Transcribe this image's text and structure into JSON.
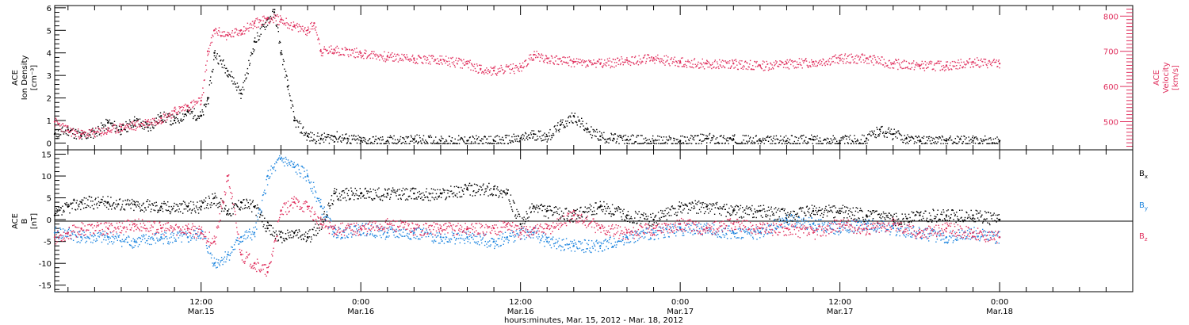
{
  "colors": {
    "black": "#000000",
    "red": "#e0305e",
    "blue": "#1f86df"
  },
  "top_panel": {
    "ylabel_left": [
      "ACE",
      "Ion Density",
      "[cm⁻³]"
    ],
    "ylabel_right": [
      "ACE",
      "Velocity",
      "[km/s]"
    ]
  },
  "bottom_panel": {
    "ylabel": [
      "ACE",
      "B",
      "[nT]"
    ],
    "legend": [
      {
        "text": "B",
        "sub": "x",
        "color": "#000000"
      },
      {
        "text": "B",
        "sub": "y",
        "color": "#1f86df"
      },
      {
        "text": "B",
        "sub": "z",
        "color": "#e0305e"
      }
    ]
  },
  "x_axis": {
    "label": "hours:minutes, Mar. 15, 2012 - Mar. 18, 2012",
    "ticks": [
      {
        "hour": 12,
        "top": "12:00",
        "bottom": "Mar.15"
      },
      {
        "hour": 24,
        "top": "0:00",
        "bottom": "Mar.16"
      },
      {
        "hour": 36,
        "top": "12:00",
        "bottom": "Mar.16"
      },
      {
        "hour": 48,
        "top": "0:00",
        "bottom": "Mar.17"
      },
      {
        "hour": 60,
        "top": "12:00",
        "bottom": "Mar.17"
      },
      {
        "hour": 72,
        "top": "0:00",
        "bottom": "Mar.18"
      }
    ]
  },
  "chart_data": [
    {
      "type": "scatter",
      "xlim_hours": [
        1,
        82
      ],
      "yaxes": {
        "left": {
          "name": "Ion Density",
          "units": "cm^-3",
          "ylim": [
            -0.3,
            6.1
          ],
          "ticks": [
            0,
            1,
            2,
            3,
            4,
            5,
            6
          ]
        },
        "right": {
          "name": "Velocity",
          "units": "km/s",
          "ylim": [
            420,
            830
          ],
          "ticks": [
            500,
            600,
            700,
            800
          ]
        }
      },
      "series": [
        {
          "key": "density",
          "axis": "left",
          "color": "#000000",
          "points": [
            [
              1,
              0.4
            ],
            [
              2,
              0.6
            ],
            [
              3,
              0.3
            ],
            [
              4,
              0.5
            ],
            [
              5,
              0.9
            ],
            [
              6,
              0.6
            ],
            [
              7,
              1.0
            ],
            [
              8,
              0.7
            ],
            [
              9,
              1.2
            ],
            [
              10,
              1.0
            ],
            [
              11,
              1.4
            ],
            [
              12,
              1.2
            ],
            [
              12.5,
              2.0
            ],
            [
              13,
              4.0
            ],
            [
              14,
              3.2
            ],
            [
              15,
              2.2
            ],
            [
              16,
              4.5
            ],
            [
              17,
              5.5
            ],
            [
              17.5,
              5.8
            ],
            [
              18,
              4.0
            ],
            [
              18.5,
              2.5
            ],
            [
              19,
              1.0
            ],
            [
              20,
              0.3
            ],
            [
              21,
              0.2
            ],
            [
              22,
              0.3
            ],
            [
              23,
              0.2
            ],
            [
              24,
              0.1
            ],
            [
              26,
              0.1
            ],
            [
              28,
              0.15
            ],
            [
              30,
              0.1
            ],
            [
              32,
              0.1
            ],
            [
              34,
              0.1
            ],
            [
              36,
              0.2
            ],
            [
              37,
              0.4
            ],
            [
              38,
              0.3
            ],
            [
              39,
              0.8
            ],
            [
              40,
              1.2
            ],
            [
              41,
              0.6
            ],
            [
              42,
              0.3
            ],
            [
              43,
              0.2
            ],
            [
              44,
              0.15
            ],
            [
              46,
              0.1
            ],
            [
              48,
              0.1
            ],
            [
              50,
              0.2
            ],
            [
              52,
              0.15
            ],
            [
              54,
              0.1
            ],
            [
              56,
              0.1
            ],
            [
              58,
              0.15
            ],
            [
              60,
              0.1
            ],
            [
              62,
              0.2
            ],
            [
              63,
              0.6
            ],
            [
              64,
              0.4
            ],
            [
              65,
              0.2
            ],
            [
              66,
              0.1
            ],
            [
              68,
              0.1
            ],
            [
              70,
              0.1
            ],
            [
              72,
              0.1
            ]
          ]
        },
        {
          "key": "velocity",
          "axis": "right",
          "color": "#e0305e",
          "points": [
            [
              1,
              500
            ],
            [
              2,
              475
            ],
            [
              3,
              465
            ],
            [
              4,
              470
            ],
            [
              5,
              475
            ],
            [
              6,
              485
            ],
            [
              7,
              490
            ],
            [
              8,
              500
            ],
            [
              9,
              510
            ],
            [
              10,
              530
            ],
            [
              11,
              545
            ],
            [
              12,
              560
            ],
            [
              12.5,
              700
            ],
            [
              13,
              760
            ],
            [
              14,
              745
            ],
            [
              15,
              760
            ],
            [
              16,
              780
            ],
            [
              17,
              795
            ],
            [
              18,
              790
            ],
            [
              19,
              770
            ],
            [
              20,
              760
            ],
            [
              20.5,
              780
            ],
            [
              21,
              700
            ],
            [
              22,
              705
            ],
            [
              24,
              695
            ],
            [
              26,
              685
            ],
            [
              28,
              680
            ],
            [
              30,
              675
            ],
            [
              32,
              665
            ],
            [
              33,
              650
            ],
            [
              34,
              645
            ],
            [
              36,
              655
            ],
            [
              37,
              690
            ],
            [
              38,
              680
            ],
            [
              40,
              670
            ],
            [
              42,
              665
            ],
            [
              44,
              675
            ],
            [
              46,
              680
            ],
            [
              48,
              670
            ],
            [
              50,
              665
            ],
            [
              52,
              665
            ],
            [
              54,
              660
            ],
            [
              56,
              665
            ],
            [
              58,
              670
            ],
            [
              60,
              680
            ],
            [
              62,
              680
            ],
            [
              64,
              665
            ],
            [
              66,
              660
            ],
            [
              68,
              660
            ],
            [
              70,
              670
            ],
            [
              72,
              665
            ]
          ]
        }
      ]
    },
    {
      "type": "scatter",
      "xlim_hours": [
        1,
        82
      ],
      "ylim": [
        -16.5,
        16
      ],
      "yticks": [
        -15,
        -10,
        -5,
        0,
        5,
        10,
        15
      ],
      "reference_line": 0,
      "series": [
        {
          "key": "Bx",
          "name": "Bx",
          "color": "#000000",
          "points": [
            [
              1,
              1
            ],
            [
              2,
              3
            ],
            [
              3,
              4
            ],
            [
              5,
              4
            ],
            [
              7,
              3.5
            ],
            [
              9,
              3
            ],
            [
              11,
              3
            ],
            [
              12,
              3
            ],
            [
              13,
              5
            ],
            [
              14,
              2
            ],
            [
              15,
              4
            ],
            [
              16,
              3
            ],
            [
              17,
              -2
            ],
            [
              18,
              -4
            ],
            [
              19,
              -3
            ],
            [
              20,
              -4
            ],
            [
              21,
              -1
            ],
            [
              22,
              6
            ],
            [
              24,
              6
            ],
            [
              26,
              6
            ],
            [
              28,
              6
            ],
            [
              30,
              6
            ],
            [
              32,
              7
            ],
            [
              34,
              7
            ],
            [
              35,
              6
            ],
            [
              36,
              -1
            ],
            [
              37,
              3
            ],
            [
              38,
              2
            ],
            [
              40,
              1
            ],
            [
              42,
              3
            ],
            [
              44,
              1
            ],
            [
              46,
              0
            ],
            [
              48,
              3
            ],
            [
              50,
              3
            ],
            [
              52,
              2
            ],
            [
              54,
              2
            ],
            [
              56,
              1
            ],
            [
              58,
              2
            ],
            [
              60,
              2
            ],
            [
              62,
              1
            ],
            [
              64,
              0
            ],
            [
              66,
              1
            ],
            [
              68,
              1
            ],
            [
              70,
              1
            ],
            [
              72,
              0
            ]
          ]
        },
        {
          "key": "By",
          "name": "By",
          "color": "#1f86df",
          "points": [
            [
              1,
              -3
            ],
            [
              2,
              -3
            ],
            [
              3,
              -4
            ],
            [
              5,
              -4
            ],
            [
              7,
              -5
            ],
            [
              9,
              -4
            ],
            [
              11,
              -4
            ],
            [
              12,
              -3
            ],
            [
              13,
              -10
            ],
            [
              14,
              -8
            ],
            [
              15,
              -4
            ],
            [
              16,
              -3
            ],
            [
              17,
              10
            ],
            [
              18,
              14
            ],
            [
              19,
              12
            ],
            [
              20,
              10
            ],
            [
              21,
              3
            ],
            [
              22,
              -3
            ],
            [
              24,
              -2
            ],
            [
              26,
              -3
            ],
            [
              28,
              -3
            ],
            [
              30,
              -4
            ],
            [
              32,
              -4
            ],
            [
              34,
              -5
            ],
            [
              35,
              -4
            ],
            [
              36,
              -3
            ],
            [
              37,
              -3
            ],
            [
              38,
              -5
            ],
            [
              40,
              -6
            ],
            [
              42,
              -6
            ],
            [
              44,
              -4
            ],
            [
              46,
              -3
            ],
            [
              48,
              -2
            ],
            [
              50,
              -2
            ],
            [
              52,
              -3
            ],
            [
              54,
              -3
            ],
            [
              56,
              0
            ],
            [
              58,
              -1
            ],
            [
              60,
              -2
            ],
            [
              62,
              -1
            ],
            [
              64,
              -2
            ],
            [
              66,
              -3
            ],
            [
              68,
              -4
            ],
            [
              70,
              -3
            ],
            [
              72,
              -4
            ]
          ]
        },
        {
          "key": "Bz",
          "name": "Bz",
          "color": "#e0305e",
          "points": [
            [
              1,
              -4
            ],
            [
              2,
              -3
            ],
            [
              3,
              -2
            ],
            [
              5,
              -2
            ],
            [
              7,
              -1
            ],
            [
              9,
              -2
            ],
            [
              11,
              -2
            ],
            [
              12,
              -3
            ],
            [
              13,
              -5
            ],
            [
              14,
              10
            ],
            [
              15,
              -8
            ],
            [
              16,
              -10
            ],
            [
              17,
              -12
            ],
            [
              18,
              2
            ],
            [
              19,
              4
            ],
            [
              20,
              3
            ],
            [
              21,
              -1
            ],
            [
              22,
              -2
            ],
            [
              24,
              -2
            ],
            [
              26,
              -1
            ],
            [
              28,
              -2
            ],
            [
              30,
              -2
            ],
            [
              32,
              -2
            ],
            [
              34,
              -2
            ],
            [
              35,
              -1
            ],
            [
              36,
              -3
            ],
            [
              37,
              -2
            ],
            [
              38,
              -2
            ],
            [
              40,
              1
            ],
            [
              42,
              -2
            ],
            [
              44,
              -3
            ],
            [
              46,
              -2
            ],
            [
              48,
              -1
            ],
            [
              50,
              -2
            ],
            [
              52,
              -1
            ],
            [
              54,
              -2
            ],
            [
              56,
              -2
            ],
            [
              58,
              -3
            ],
            [
              60,
              -1
            ],
            [
              62,
              -2
            ],
            [
              64,
              -1
            ],
            [
              66,
              -3
            ],
            [
              68,
              -2
            ],
            [
              70,
              -3
            ],
            [
              72,
              -4
            ]
          ]
        }
      ]
    }
  ]
}
